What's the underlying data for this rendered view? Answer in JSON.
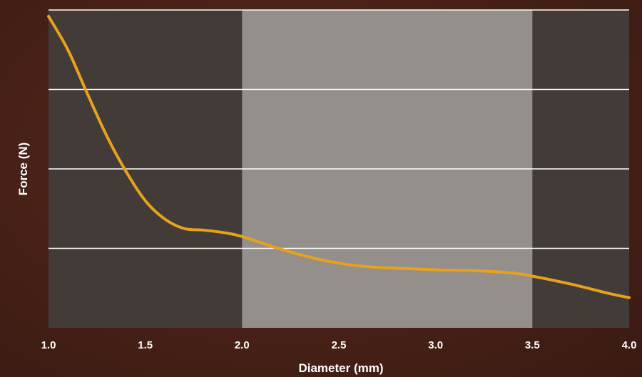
{
  "chart_data": {
    "type": "line",
    "title": "",
    "xlabel": "Diameter (mm)",
    "ylabel": "Force (N)",
    "xlim": [
      1.0,
      4.0
    ],
    "ylim": [
      0,
      4
    ],
    "x_ticks": [
      "1.0",
      "1.5",
      "2.0",
      "2.5",
      "3.0",
      "3.5",
      "4.0"
    ],
    "y_tick_labels_shown": false,
    "grid": "horizontal",
    "shaded_region": {
      "x_start": 2.0,
      "x_end": 3.5
    },
    "colors": {
      "plot_background": "#433b37",
      "shaded_region": "#948f8b",
      "gridline": "#ffffff",
      "line": "#e6a21c",
      "text": "#ffffff"
    },
    "series": [
      {
        "x": [
          1.0,
          1.1,
          1.2,
          1.3,
          1.4,
          1.5,
          1.6,
          1.7,
          1.8,
          1.9,
          2.0,
          2.2,
          2.4,
          2.6,
          2.8,
          3.0,
          3.2,
          3.4,
          3.5,
          3.7,
          3.9,
          4.0
        ],
        "values": [
          3.92,
          3.5,
          2.95,
          2.42,
          1.97,
          1.6,
          1.37,
          1.25,
          1.23,
          1.2,
          1.15,
          0.99,
          0.86,
          0.78,
          0.75,
          0.73,
          0.72,
          0.69,
          0.65,
          0.55,
          0.43,
          0.38
        ]
      }
    ]
  }
}
